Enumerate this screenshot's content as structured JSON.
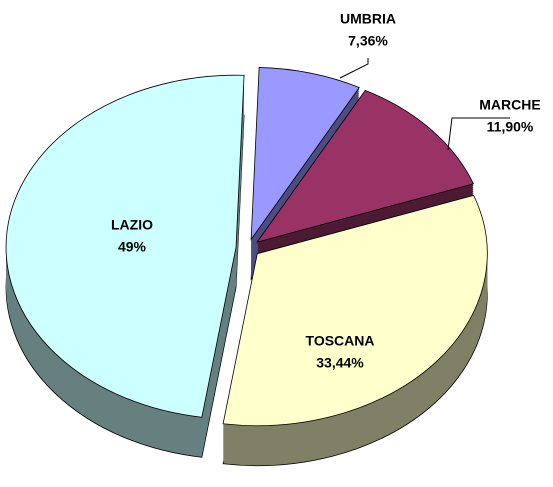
{
  "chart_data": {
    "type": "pie",
    "categories": [
      "UMBRIA",
      "MARCHE",
      "TOSCANA",
      "LAZIO"
    ],
    "values": [
      7.36,
      11.9,
      33.44,
      49
    ],
    "value_labels": [
      "7,36%",
      "11,90%",
      "33,44%",
      "49%"
    ],
    "colors": [
      "#9999ff",
      "#993366",
      "#ffffcc",
      "#ccffff"
    ]
  }
}
